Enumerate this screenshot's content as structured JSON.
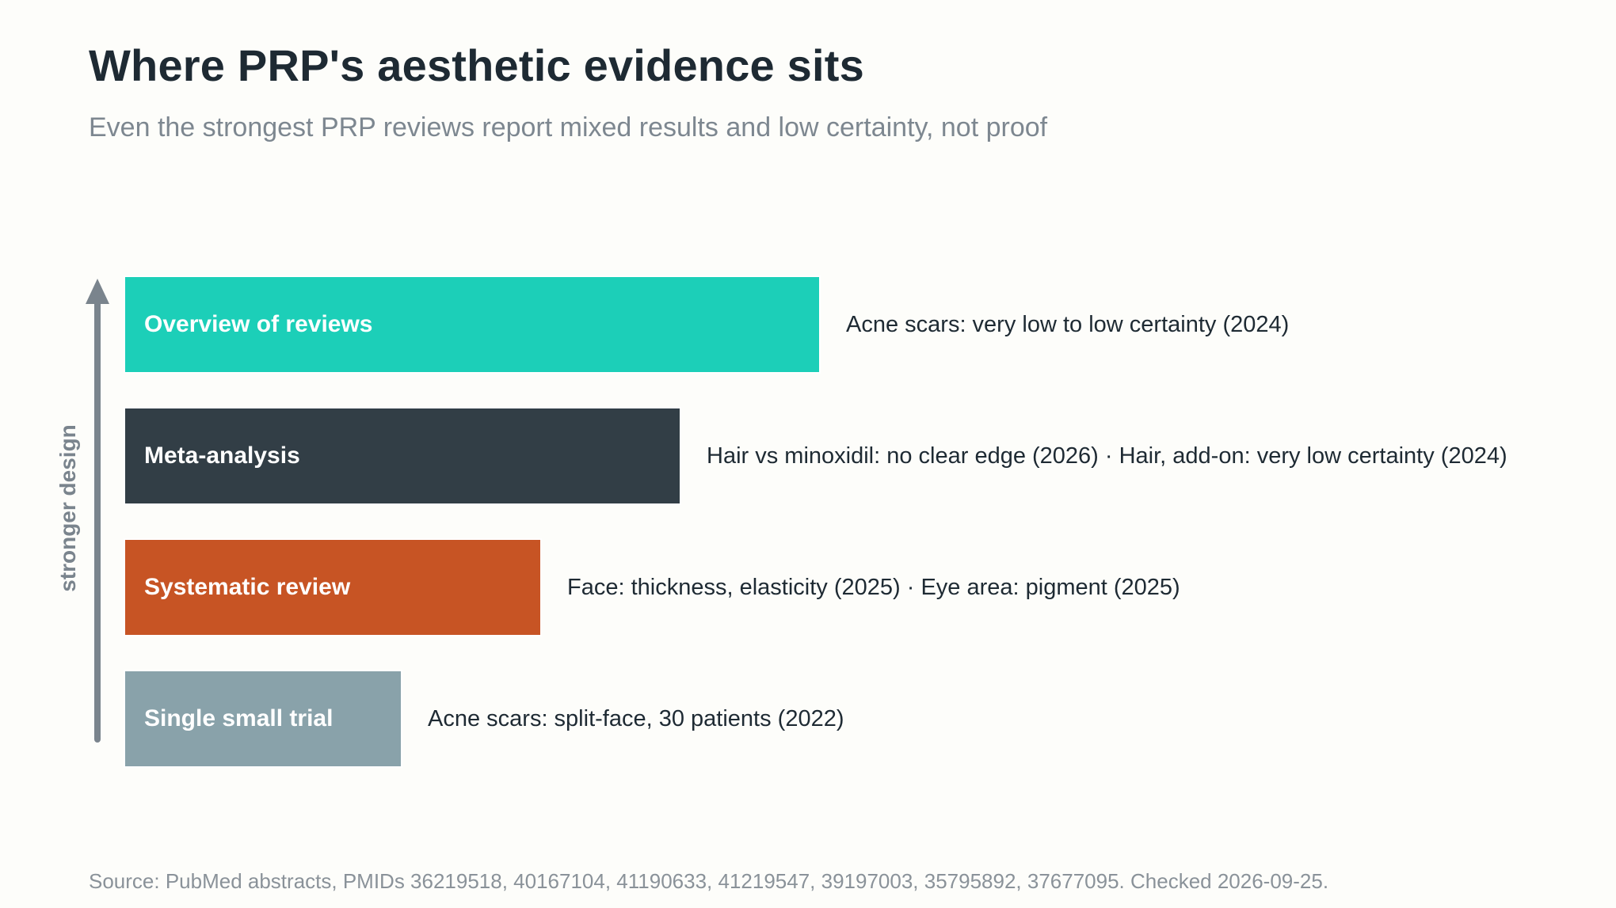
{
  "title": "Where PRP's aesthetic evidence sits",
  "subtitle": "Even the strongest PRP reviews report mixed results and low certainty, not proof",
  "axis_label": "stronger design",
  "levels": [
    {
      "label": "Overview of reviews",
      "note": "Acne scars: very low to low certainty (2024)",
      "rank": 4,
      "color": "#1ccfb8"
    },
    {
      "label": "Meta-analysis",
      "note": "Hair vs minoxidil: no clear edge (2026) · Hair, add-on: very low certainty (2024)",
      "rank": 3,
      "color": "#323e46"
    },
    {
      "label": "Systematic review",
      "note": "Face: thickness, elasticity (2025) · Eye area: pigment (2025)",
      "rank": 2,
      "color": "#c75424"
    },
    {
      "label": "Single small trial",
      "note": "Acne scars: split-face, 30 patients (2022)",
      "rank": 1,
      "color": "#89a2aa"
    }
  ],
  "source": "Source: PubMed abstracts, PMIDs 36219518, 40167104, 41190633, 41219547, 39197003, 35795892, 37677095. Checked 2026-09-25."
}
